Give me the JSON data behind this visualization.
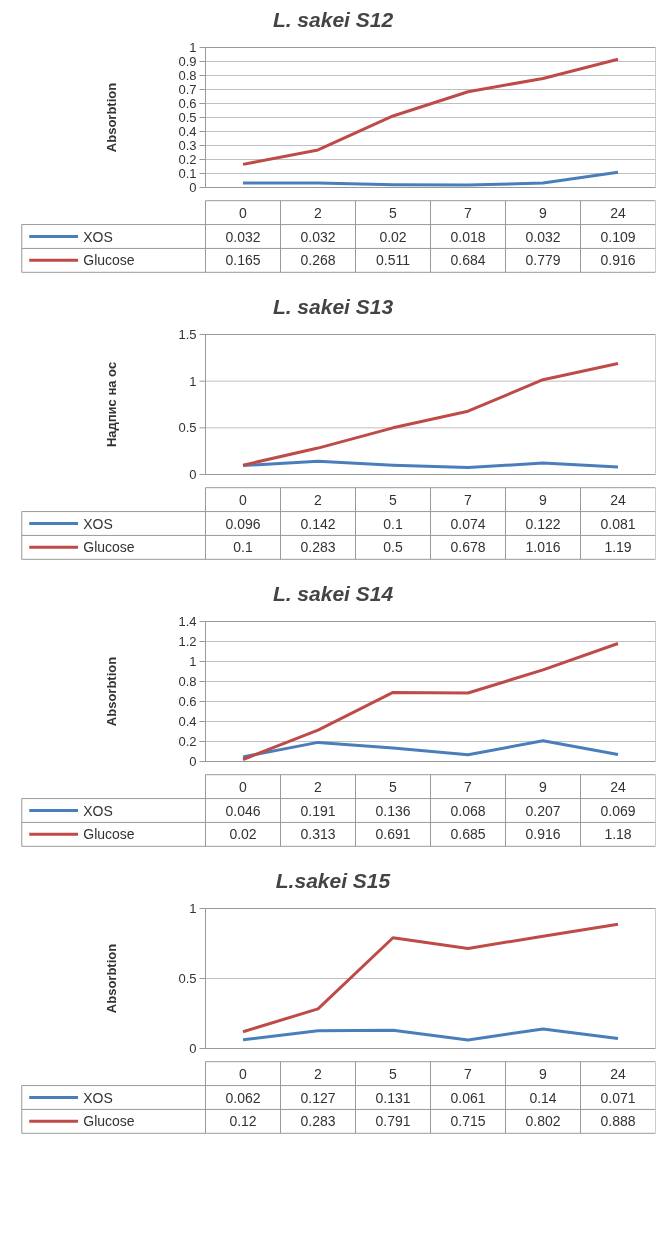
{
  "chart_data": [
    {
      "type": "line",
      "title": "L. sakei S12",
      "ylabel": "Absorbtion",
      "categories": [
        "0",
        "2",
        "5",
        "7",
        "9",
        "24"
      ],
      "ylim": [
        0,
        1
      ],
      "yticks": [
        0,
        0.1,
        0.2,
        0.3,
        0.4,
        0.5,
        0.6,
        0.7,
        0.8,
        0.9,
        1
      ],
      "grid": "y",
      "tick_labels": "y",
      "data_labels": true,
      "legend": "bottom",
      "marker": "none",
      "line_style": "solid",
      "series": [
        {
          "name": "XOS",
          "color": "#4a7ebb",
          "values": [
            0.032,
            0.032,
            0.02,
            0.018,
            0.032,
            0.109
          ]
        },
        {
          "name": "Glucose",
          "color": "#be4b48",
          "values": [
            0.165,
            0.268,
            0.511,
            0.684,
            0.779,
            0.916
          ]
        }
      ]
    },
    {
      "type": "line",
      "title": "L. sakei S13",
      "ylabel": "Надпис на ос",
      "categories": [
        "0",
        "2",
        "5",
        "7",
        "9",
        "24"
      ],
      "ylim": [
        0,
        1.5
      ],
      "yticks": [
        0,
        0.5,
        1,
        1.5
      ],
      "grid": "y",
      "tick_labels": "y",
      "data_labels": true,
      "legend": "bottom",
      "marker": "none",
      "line_style": "solid",
      "series": [
        {
          "name": "XOS",
          "color": "#4a7ebb",
          "values": [
            0.096,
            0.142,
            0.1,
            0.074,
            0.122,
            0.081
          ]
        },
        {
          "name": "Glucose",
          "color": "#be4b48",
          "values": [
            0.1,
            0.283,
            0.5,
            0.678,
            1.016,
            1.19
          ]
        }
      ]
    },
    {
      "type": "line",
      "title": "L. sakei S14",
      "ylabel": "Absorbtion",
      "categories": [
        "0",
        "2",
        "5",
        "7",
        "9",
        "24"
      ],
      "ylim": [
        0,
        1.4
      ],
      "yticks": [
        0,
        0.2,
        0.4,
        0.6,
        0.8,
        1,
        1.2,
        1.4
      ],
      "grid": "y",
      "tick_labels": "y",
      "data_labels": true,
      "legend": "bottom",
      "marker": "none",
      "line_style": "solid",
      "series": [
        {
          "name": "XOS",
          "color": "#4a7ebb",
          "values": [
            0.046,
            0.191,
            0.136,
            0.068,
            0.207,
            0.069
          ]
        },
        {
          "name": "Glucose",
          "color": "#be4b48",
          "values": [
            0.02,
            0.313,
            0.691,
            0.685,
            0.916,
            1.18
          ]
        }
      ]
    },
    {
      "type": "line",
      "title": "L.sakei S15",
      "ylabel": "Absorbtion",
      "categories": [
        "0",
        "2",
        "5",
        "7",
        "9",
        "24"
      ],
      "ylim": [
        0,
        1
      ],
      "yticks": [
        0,
        0.5,
        1
      ],
      "grid": "y",
      "tick_labels": "y",
      "data_labels": true,
      "legend": "bottom",
      "marker": "none",
      "line_style": "solid",
      "series": [
        {
          "name": "XOS",
          "color": "#4a7ebb",
          "values": [
            0.062,
            0.127,
            0.131,
            0.061,
            0.14,
            0.071
          ]
        },
        {
          "name": "Glucose",
          "color": "#be4b48",
          "values": [
            0.12,
            0.283,
            0.791,
            0.715,
            0.802,
            0.888
          ]
        }
      ]
    }
  ]
}
